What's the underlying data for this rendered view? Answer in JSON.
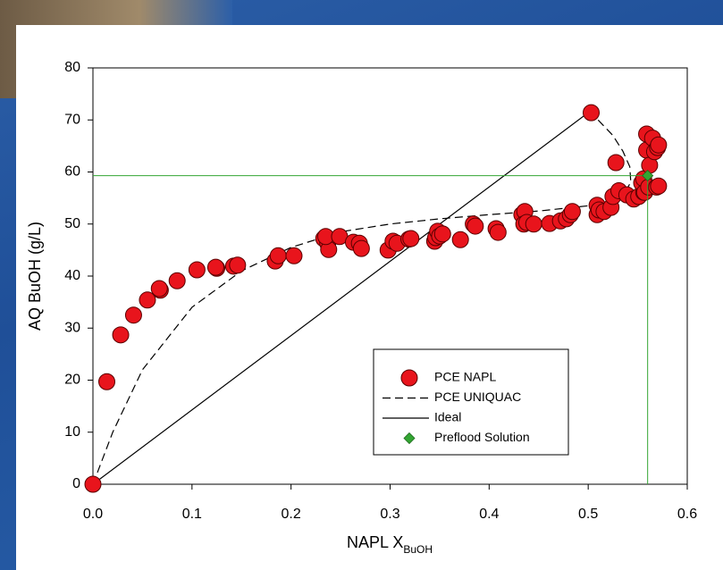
{
  "chart_data": {
    "type": "scatter",
    "xlabel": "NAPL X",
    "xlabel_sub": "BuOH",
    "ylabel": "AQ BuOH (g/L)",
    "xlim": [
      0,
      0.6
    ],
    "ylim": [
      0,
      80
    ],
    "xticks": [
      {
        "value": 0,
        "label": "0.0"
      },
      0.1,
      0.2,
      0.3,
      0.4,
      0.5,
      0.6
    ],
    "yticks": [
      0,
      10,
      20,
      30,
      40,
      50,
      60,
      70,
      80
    ],
    "series": [
      {
        "name": "PCE NAPL",
        "type": "scatter",
        "marker": "circle",
        "color": "#e8141c",
        "x": [
          0,
          0.014,
          0.028,
          0.041,
          0.055,
          0.068,
          0.067,
          0.085,
          0.105,
          0.125,
          0.124,
          0.142,
          0.146,
          0.184,
          0.187,
          0.203,
          0.233,
          0.237,
          0.238,
          0.235,
          0.249,
          0.263,
          0.269,
          0.271,
          0.298,
          0.303,
          0.307,
          0.319,
          0.321,
          0.345,
          0.346,
          0.348,
          0.35,
          0.353,
          0.371,
          0.384,
          0.386,
          0.407,
          0.409,
          0.433,
          0.436,
          0.435,
          0.438,
          0.445,
          0.461,
          0.472,
          0.478,
          0.482,
          0.484,
          0.503,
          0.509,
          0.509,
          0.511,
          0.516,
          0.523,
          0.525,
          0.528,
          0.531,
          0.539,
          0.546,
          0.551,
          0.556,
          0.554,
          0.556,
          0.557,
          0.559,
          0.559,
          0.561,
          0.562,
          0.565,
          0.567,
          0.569,
          0.57,
          0.571,
          0.571
        ],
        "values": [
          0,
          19.7,
          28.7,
          32.5,
          35.4,
          37.3,
          37.6,
          39.1,
          41.2,
          41.5,
          41.7,
          41.9,
          42.1,
          42.9,
          43.9,
          43.9,
          47.2,
          46.3,
          45.1,
          47.6,
          47.6,
          46.5,
          46.3,
          45.3,
          45.0,
          46.7,
          46.3,
          47.1,
          47.2,
          46.7,
          47.4,
          48.6,
          47.7,
          48.1,
          47.0,
          50.0,
          49.6,
          49.1,
          48.4,
          51.8,
          52.4,
          50.0,
          50.3,
          50.0,
          50.1,
          50.6,
          51.0,
          51.8,
          52.4,
          71.4,
          51.8,
          53.6,
          52.7,
          52.4,
          53.2,
          55.3,
          61.8,
          56.4,
          55.6,
          54.8,
          55.3,
          56.1,
          57.9,
          58.7,
          56.1,
          64.2,
          67.3,
          57.1,
          61.3,
          66.5,
          63.9,
          57.1,
          64.7,
          57.3,
          65.2
        ]
      },
      {
        "name": "PCE UNIQUAC",
        "type": "line",
        "dash": true,
        "color": "#000000",
        "x": [
          0,
          0.02,
          0.05,
          0.1,
          0.15,
          0.2,
          0.25,
          0.3,
          0.35,
          0.4,
          0.45,
          0.5,
          0.52,
          0.535,
          0.543,
          0.542,
          0.535,
          0.525,
          0.51,
          0.5
        ],
        "values": [
          0,
          10,
          22,
          34,
          41,
          45.5,
          48.5,
          50,
          51,
          51.8,
          52.5,
          53.5,
          54.3,
          55.5,
          58,
          61,
          64,
          67,
          70,
          71.4
        ]
      },
      {
        "name": "Ideal",
        "type": "line",
        "dash": false,
        "color": "#000000",
        "x": [
          0,
          0.5
        ],
        "values": [
          0,
          71.4
        ]
      },
      {
        "name": "Preflood Solution",
        "type": "scatter",
        "marker": "diamond",
        "color": "#33a532",
        "guides": true,
        "x": [
          0.56
        ],
        "values": [
          59.3
        ]
      }
    ]
  }
}
